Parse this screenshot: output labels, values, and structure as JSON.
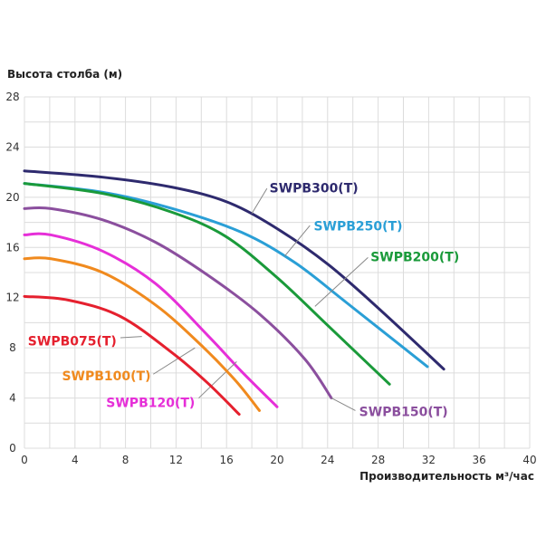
{
  "chart_data": {
    "type": "line",
    "title": "",
    "xlabel": "Производительность м³/час",
    "ylabel": "Высота столба (м)",
    "xlim": [
      0,
      40
    ],
    "ylim": [
      0,
      28
    ],
    "xticks": [
      "0",
      "4",
      "8",
      "12",
      "16",
      "20",
      "24",
      "28",
      "32",
      "36",
      "40"
    ],
    "yticks": [
      "0",
      "4",
      "8",
      "12",
      "16",
      "20",
      "24",
      "28"
    ],
    "grid": true,
    "legend": "inline labels with leader lines",
    "series": [
      {
        "name": "SWPB300(T)",
        "color": "#2e2a6e",
        "x": [
          0,
          6.2,
          11.7,
          16.1,
          20,
          24.1,
          28.3,
          33.2
        ],
        "y": [
          22.1,
          21.6,
          20.8,
          19.6,
          17.5,
          14.6,
          10.9,
          6.3
        ]
      },
      {
        "name": "SWPB250(T)",
        "color": "#2a9fd6",
        "x": [
          0,
          6.2,
          11.7,
          17.2,
          21.4,
          25.5,
          31.9
        ],
        "y": [
          21.1,
          20.4,
          19.1,
          17.2,
          14.8,
          11.6,
          6.5
        ]
      },
      {
        "name": "SWPB200(T)",
        "color": "#1a9a3a",
        "x": [
          0,
          6.2,
          11.7,
          15.9,
          20,
          24.1,
          28.9
        ],
        "y": [
          21.1,
          20.3,
          18.8,
          16.9,
          13.6,
          9.7,
          5.1
        ]
      },
      {
        "name": "SWPB150(T)",
        "color": "#8b4f9e",
        "x": [
          0,
          2.1,
          6.2,
          10.4,
          14.5,
          18.6,
          22.2,
          24.3
        ],
        "y": [
          19.1,
          19.1,
          18.2,
          16.4,
          13.8,
          10.7,
          7.1,
          4.0
        ]
      },
      {
        "name": "SWPB120(T)",
        "color": "#e62fd8",
        "x": [
          0,
          2.1,
          6.2,
          10.4,
          14.5,
          17.2,
          20
        ],
        "y": [
          17.0,
          17.0,
          15.7,
          13.1,
          9.0,
          6.1,
          3.3
        ]
      },
      {
        "name": "SWPB100(T)",
        "color": "#f08a1e",
        "x": [
          0,
          2.1,
          6.2,
          10.4,
          13.9,
          16.7,
          18.6
        ],
        "y": [
          15.1,
          15.1,
          14.0,
          11.4,
          8.3,
          5.4,
          3.0
        ]
      },
      {
        "name": "SWPB075(T)",
        "color": "#e5202e",
        "x": [
          0,
          3.5,
          7.6,
          11.7,
          14.5,
          17
        ],
        "y": [
          12.1,
          11.8,
          10.5,
          7.6,
          5.2,
          2.7
        ]
      }
    ]
  }
}
